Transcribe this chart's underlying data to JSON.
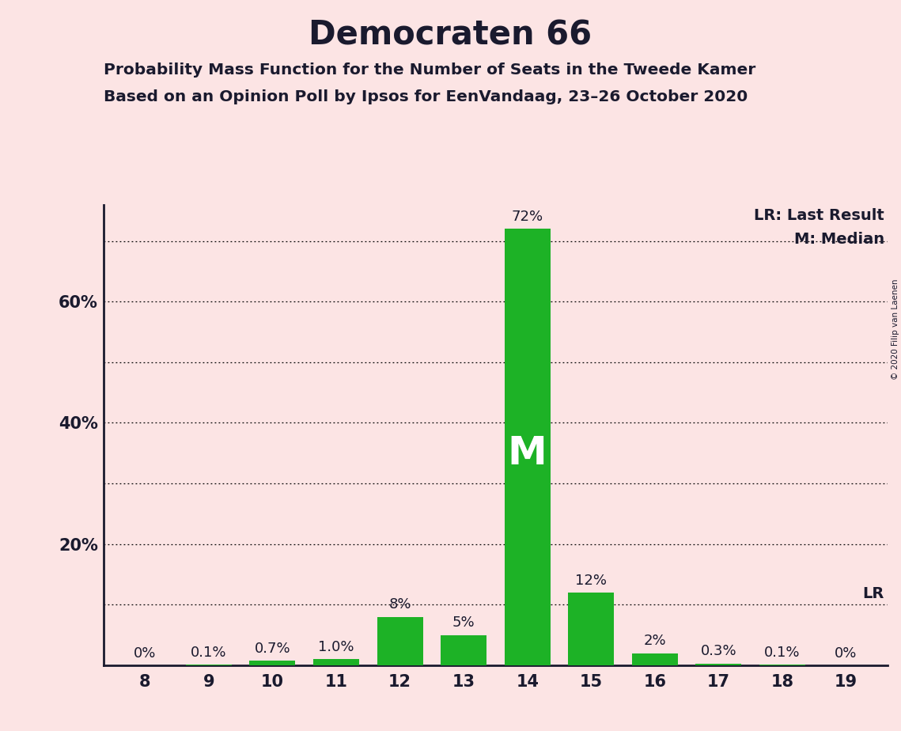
{
  "title": "Democraten 66",
  "subtitle1": "Probability Mass Function for the Number of Seats in the Tweede Kamer",
  "subtitle2": "Based on an Opinion Poll by Ipsos for EenVandaag, 23–26 October 2020",
  "background_color": "#fce4e4",
  "bar_color": "#1db226",
  "seats": [
    8,
    9,
    10,
    11,
    12,
    13,
    14,
    15,
    16,
    17,
    18,
    19
  ],
  "values": [
    0.0,
    0.1,
    0.7,
    1.0,
    8.0,
    5.0,
    72.0,
    12.0,
    2.0,
    0.3,
    0.1,
    0.0
  ],
  "labels": [
    "0%",
    "0.1%",
    "0.7%",
    "1.0%",
    "8%",
    "5%",
    "72%",
    "12%",
    "2%",
    "0.3%",
    "0.1%",
    "0%"
  ],
  "median_seat": 14,
  "last_result_value": 10.0,
  "ylim_max": 76,
  "dotted_lines": [
    10,
    20,
    30,
    40,
    50,
    60,
    70
  ],
  "ytick_positions": [
    20,
    40,
    60
  ],
  "ytick_labels": [
    "20%",
    "40%",
    "60%"
  ],
  "copyright_text": "© 2020 Filip van Laenen",
  "lr_label": "LR: Last Result",
  "m_label": "M: Median",
  "m_bar_text": "M",
  "lr_line_value": 10.0,
  "lr_text": "LR"
}
